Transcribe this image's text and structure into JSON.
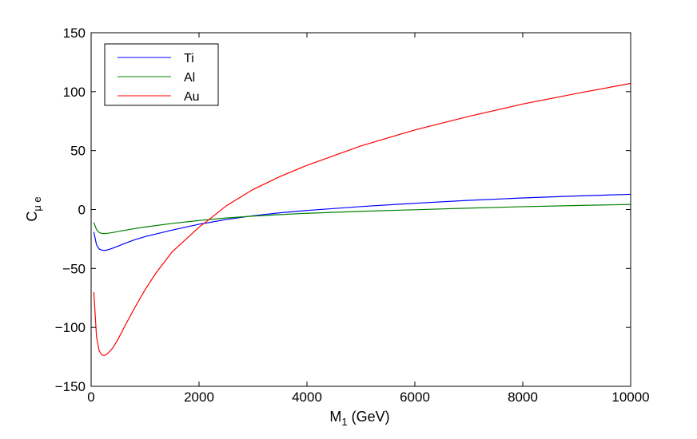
{
  "chart_data": {
    "type": "line",
    "xlabel": "M",
    "xlabel_sub": "1",
    "xlabel_suffix": " (GeV)",
    "ylabel": "C",
    "ylabel_sub": "μ e",
    "xlim": [
      0,
      10000
    ],
    "ylim": [
      -150,
      150
    ],
    "x_ticks": [
      0,
      2000,
      4000,
      6000,
      8000,
      10000
    ],
    "x_tick_labels": [
      "0",
      "2000",
      "4000",
      "6000",
      "8000",
      "10000"
    ],
    "y_ticks": [
      -150,
      -100,
      -50,
      0,
      50,
      100,
      150
    ],
    "y_tick_labels": [
      "−150",
      "−100",
      "−50",
      "0",
      "50",
      "100",
      "150"
    ],
    "grid": false,
    "legend_position": "top-left",
    "series": [
      {
        "name": "Ti",
        "color": "#0000ff",
        "x": [
          50,
          100,
          150,
          200,
          250,
          300,
          400,
          500,
          600,
          800,
          1000,
          1500,
          2000,
          2500,
          3000,
          3500,
          4000,
          5000,
          6000,
          7000,
          8000,
          9000,
          10000
        ],
        "y": [
          -19,
          -30,
          -33.5,
          -34.5,
          -34.7,
          -34.3,
          -32.8,
          -31,
          -29.2,
          -25.8,
          -23,
          -17.5,
          -12.5,
          -8.5,
          -5.3,
          -2.8,
          -0.8,
          2.5,
          5.3,
          7.8,
          9.8,
          11.5,
          12.9
        ]
      },
      {
        "name": "Al",
        "color": "#008000",
        "x": [
          50,
          100,
          150,
          200,
          250,
          300,
          400,
          500,
          600,
          800,
          1000,
          1500,
          2000,
          2500,
          3000,
          3500,
          4000,
          5000,
          6000,
          7000,
          8000,
          9000,
          10000
        ],
        "y": [
          -11,
          -17,
          -19.5,
          -20.3,
          -20.4,
          -20.2,
          -19.5,
          -18.6,
          -17.8,
          -16.2,
          -14.8,
          -11.8,
          -9.3,
          -7.2,
          -5.6,
          -4.3,
          -3.2,
          -1.5,
          -0.2,
          1.2,
          2.4,
          3.4,
          4.3
        ]
      },
      {
        "name": "Au",
        "color": "#ff0000",
        "x": [
          50,
          100,
          150,
          200,
          250,
          300,
          400,
          500,
          600,
          800,
          1000,
          1200,
          1500,
          2000,
          2200,
          2500,
          3000,
          3500,
          4000,
          5000,
          6000,
          7000,
          8000,
          9000,
          10000
        ],
        "y": [
          -70,
          -108,
          -120,
          -123.5,
          -123.8,
          -122.5,
          -117.5,
          -110,
          -101,
          -84,
          -68,
          -54,
          -36,
          -15,
          -8,
          3,
          17,
          28,
          37.5,
          54,
          67.5,
          79,
          89.5,
          98.5,
          107
        ]
      }
    ]
  }
}
